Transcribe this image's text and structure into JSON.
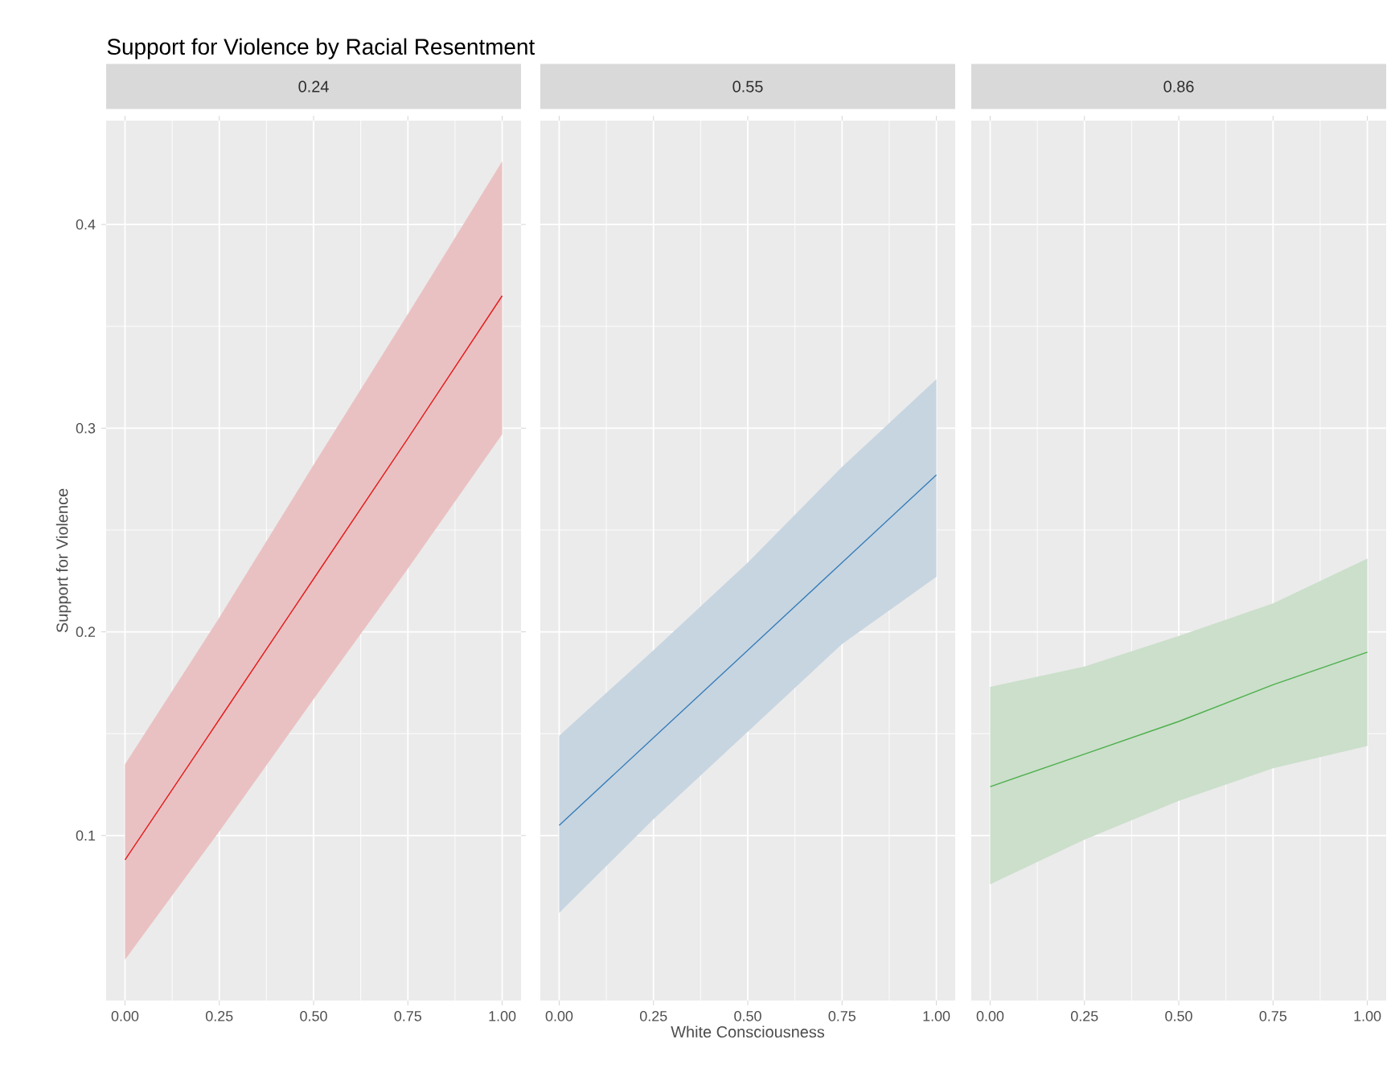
{
  "chart_data": [
    {
      "type": "line",
      "title": "Support for Violence by Racial Resentment",
      "subtitle": "0.24",
      "ylabel": "Support for Violence",
      "grid": true,
      "xlim": [
        -0.05,
        1.05
      ],
      "xticks": [
        {
          "value": 0,
          "label": "0.00"
        },
        {
          "value": 0.25,
          "label": "0.25"
        },
        {
          "value": 0.5,
          "label": "0.50"
        },
        {
          "value": 0.75,
          "label": "0.75"
        },
        {
          "value": 1,
          "label": "1.00"
        }
      ],
      "ylim": [
        0.019,
        0.451
      ],
      "yticks": [
        0.1,
        0.2,
        0.3,
        0.4
      ],
      "series": [
        {
          "color": "#e41a1c",
          "x": [
            0,
            0.25,
            0.5,
            0.75,
            1
          ],
          "values": [
            0.088,
            0.157,
            0.226,
            0.295,
            0.365
          ],
          "lower": [
            0.039,
            0.102,
            0.167,
            0.231,
            0.297
          ],
          "upper": [
            0.135,
            0.207,
            0.282,
            0.356,
            0.431
          ]
        }
      ]
    },
    {
      "type": "line",
      "subtitle": "0.55",
      "xlabel": "White Consciousness",
      "grid": true,
      "tick_labels": "x",
      "xlim": [
        -0.05,
        1.05
      ],
      "xticks": [
        {
          "value": 0,
          "label": "0.00"
        },
        {
          "value": 0.25,
          "label": "0.25"
        },
        {
          "value": 0.5,
          "label": "0.50"
        },
        {
          "value": 0.75,
          "label": "0.75"
        },
        {
          "value": 1,
          "label": "1.00"
        }
      ],
      "ylim": [
        0.019,
        0.451
      ],
      "yticks": [
        0.1,
        0.2,
        0.3,
        0.4
      ],
      "series": [
        {
          "color": "#377eb8",
          "x": [
            0,
            0.25,
            0.5,
            0.75,
            1
          ],
          "values": [
            0.105,
            0.148,
            0.191,
            0.234,
            0.277
          ],
          "lower": [
            0.062,
            0.108,
            0.151,
            0.194,
            0.227
          ],
          "upper": [
            0.149,
            0.191,
            0.234,
            0.281,
            0.324
          ]
        }
      ]
    },
    {
      "type": "line",
      "subtitle": "0.86",
      "grid": true,
      "tick_labels": "x",
      "xlim": [
        -0.05,
        1.05
      ],
      "xticks": [
        {
          "value": 0,
          "label": "0.00"
        },
        {
          "value": 0.25,
          "label": "0.25"
        },
        {
          "value": 0.5,
          "label": "0.50"
        },
        {
          "value": 0.75,
          "label": "0.75"
        },
        {
          "value": 1,
          "label": "1.00"
        }
      ],
      "ylim": [
        0.019,
        0.451
      ],
      "yticks": [
        0.1,
        0.2,
        0.3,
        0.4
      ],
      "series": [
        {
          "color": "#4daf4a",
          "x": [
            0,
            0.25,
            0.5,
            0.75,
            1
          ],
          "values": [
            0.124,
            0.14,
            0.156,
            0.174,
            0.19
          ],
          "lower": [
            0.076,
            0.098,
            0.117,
            0.133,
            0.144
          ],
          "upper": [
            0.173,
            0.183,
            0.198,
            0.214,
            0.236
          ]
        }
      ]
    }
  ]
}
